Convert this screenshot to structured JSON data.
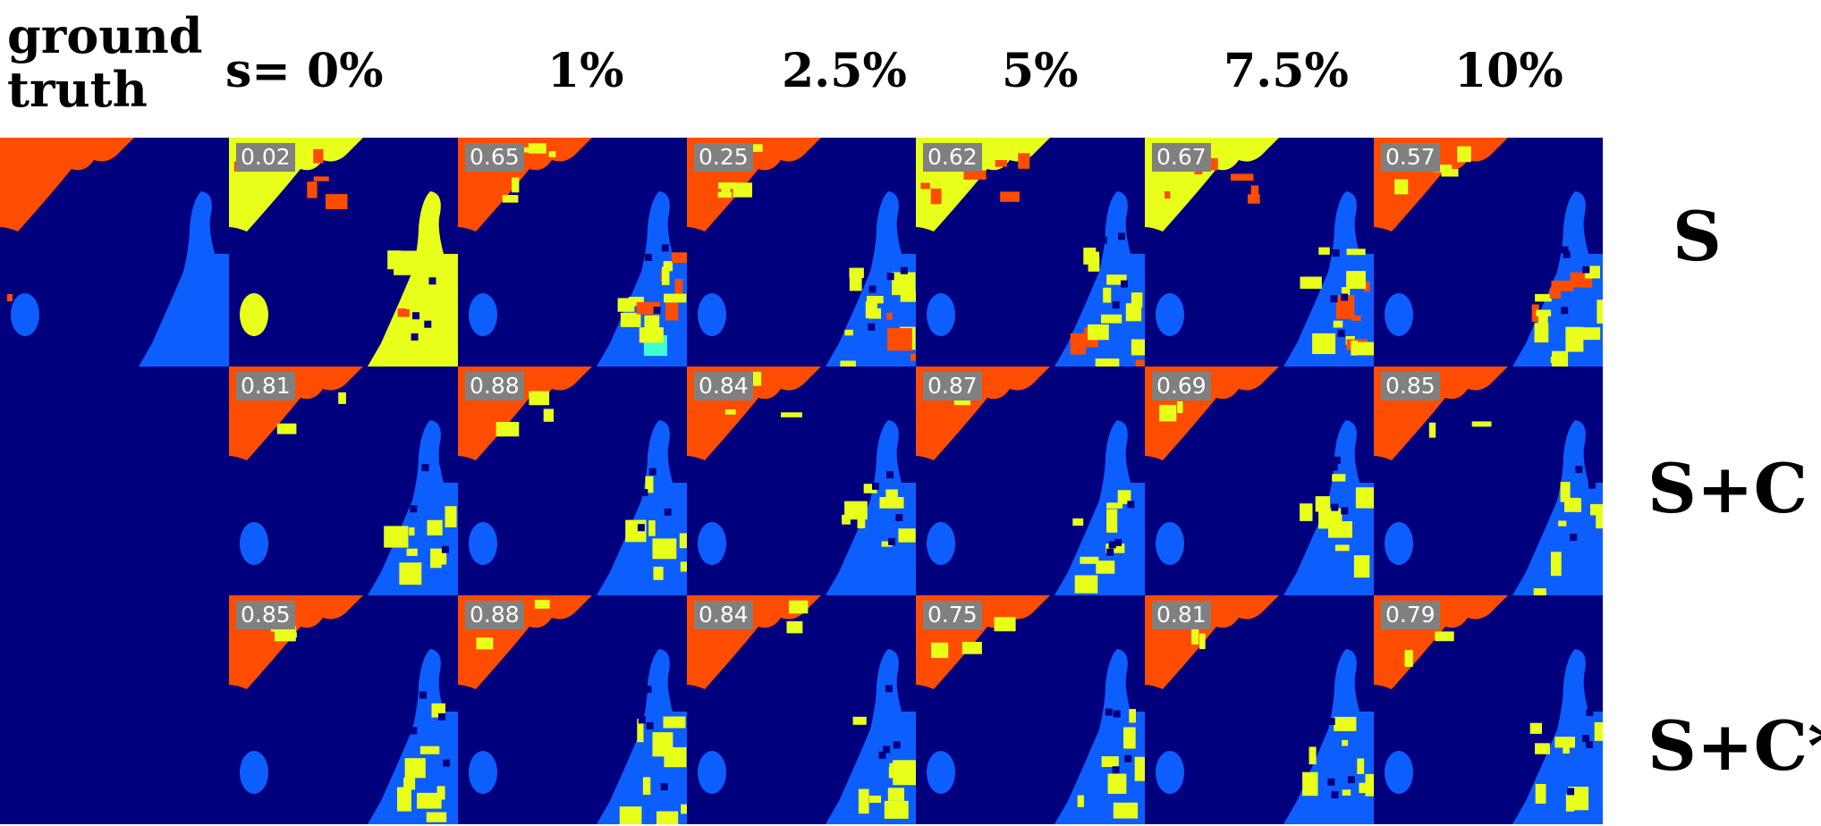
{
  "header": {
    "ground_truth_line1": "ground",
    "ground_truth_line2": "truth"
  },
  "columns": [
    "s= 0%",
    "1%",
    "2.5%",
    "5%",
    "7.5%",
    "10%"
  ],
  "rows": [
    {
      "label": "S",
      "scores": [
        "0.02",
        "0.65",
        "0.25",
        "0.62",
        "0.67",
        "0.57"
      ]
    },
    {
      "label": "S+C",
      "scores": [
        "0.81",
        "0.88",
        "0.84",
        "0.87",
        "0.69",
        "0.85"
      ]
    },
    {
      "label": "S+C*",
      "scores": [
        "0.85",
        "0.88",
        "0.84",
        "0.75",
        "0.81",
        "0.79"
      ]
    }
  ],
  "colors": {
    "background": "#00007f",
    "class_orange": "#ff4d00",
    "class_blue": "#0d5eff",
    "class_yellow": "#e8ff1a",
    "class_cyan": "#3fffd0",
    "score_box": "#808080"
  }
}
